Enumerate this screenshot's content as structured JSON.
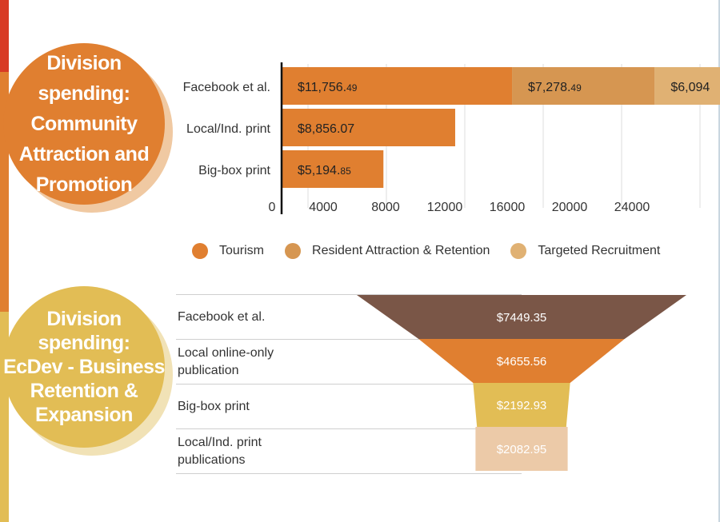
{
  "colors": {
    "tourism": "#e07f30",
    "resident": "#d69651",
    "recruitment": "#e0b173",
    "badge_community": "#e07f30",
    "badge_ecdev": "#e2bd55",
    "funnel": [
      "#7a5647",
      "#e07f30",
      "#e2bd55",
      "#eccaa8"
    ]
  },
  "badges": {
    "community": {
      "line1": "Division spending:",
      "line2": "Community",
      "line3": "Attraction and",
      "line4": "Promotion"
    },
    "ecdev": {
      "line1": "Division spending:",
      "line2": "EcDev - Business",
      "line3": "Retention &",
      "line4": "Expansion"
    }
  },
  "chart_data": [
    {
      "type": "bar",
      "orientation": "horizontal",
      "stacked": true,
      "categories": [
        "Facebook et al.",
        "Local/Ind. print",
        "Big-box print"
      ],
      "series": [
        {
          "name": "Tourism",
          "values": [
            11756.49,
            8856.07,
            5194.85
          ],
          "labels": [
            [
              "$11,756.",
              "49"
            ],
            [
              "$8,856.07",
              ""
            ],
            [
              "$5,194.",
              "85"
            ]
          ]
        },
        {
          "name": "Resident Attraction & Retention",
          "values": [
            7278.49,
            0,
            0
          ],
          "labels": [
            [
              "$7,278.",
              "49"
            ],
            [
              "",
              ""
            ],
            [
              "",
              ""
            ]
          ]
        },
        {
          "name": "Targeted Recruitment",
          "values": [
            6094,
            0,
            0
          ],
          "labels": [
            [
              "$6,094",
              ""
            ],
            [
              "",
              ""
            ],
            [
              "",
              ""
            ]
          ]
        }
      ],
      "x_ticks": [
        "0",
        "4000",
        "8000",
        "12000",
        "16000",
        "20000",
        "24000"
      ],
      "xlim": [
        0,
        27000
      ],
      "grid": true,
      "legend": "bottom"
    },
    {
      "type": "funnel",
      "categories": [
        "Facebook et al.",
        "Local online-only publication",
        "Big-box print",
        "Local/Ind. print publications"
      ],
      "values": [
        7449.35,
        4655.56,
        2192.93,
        2082.95
      ],
      "value_labels": [
        "$7449.35",
        "$4655.56",
        "$2192.93",
        "$2082.95"
      ]
    }
  ],
  "funnel_rows": [
    {
      "line1": "Facebook et al.",
      "line2": ""
    },
    {
      "line1": "Local online-only",
      "line2": "publication"
    },
    {
      "line1": "Big-box print",
      "line2": ""
    },
    {
      "line1": "Local/Ind. print",
      "line2": "publications"
    }
  ],
  "legend": {
    "items": [
      {
        "label": "Tourism"
      },
      {
        "label": "Resident Attraction & Retention"
      },
      {
        "label": "Targeted Recruitment"
      }
    ]
  }
}
